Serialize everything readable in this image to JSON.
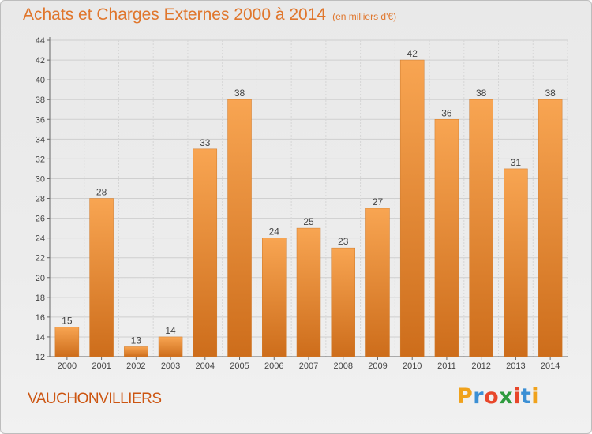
{
  "title": "Achats et Charges Externes 2000 à 2014",
  "subtitle": "(en milliers d'€)",
  "commune": "VAUCHONVILLIERS",
  "brand": {
    "letters": [
      "P",
      "r",
      "o",
      "x",
      "i",
      "t",
      "i"
    ],
    "colors": [
      "#f0a21c",
      "#3b8fd4",
      "#e8472b",
      "#2e9b3e",
      "#e8472b",
      "#3b8fd4",
      "#f0a21c"
    ]
  },
  "colors": {
    "bar_light": "#f8a552",
    "bar_dark": "#cd6d1b",
    "title": "#e0762c"
  },
  "chart_data": {
    "type": "bar",
    "categories": [
      "2000",
      "2001",
      "2002",
      "2003",
      "2004",
      "2005",
      "2006",
      "2007",
      "2008",
      "2009",
      "2010",
      "2011",
      "2012",
      "2013",
      "2014"
    ],
    "values": [
      15,
      28,
      13,
      14,
      33,
      38,
      24,
      25,
      23,
      27,
      42,
      36,
      38,
      31,
      38
    ],
    "ylim": [
      12,
      44
    ],
    "yticks": [
      12,
      14,
      16,
      18,
      20,
      22,
      24,
      26,
      28,
      30,
      32,
      34,
      36,
      38,
      40,
      42,
      44
    ],
    "grid": true
  }
}
